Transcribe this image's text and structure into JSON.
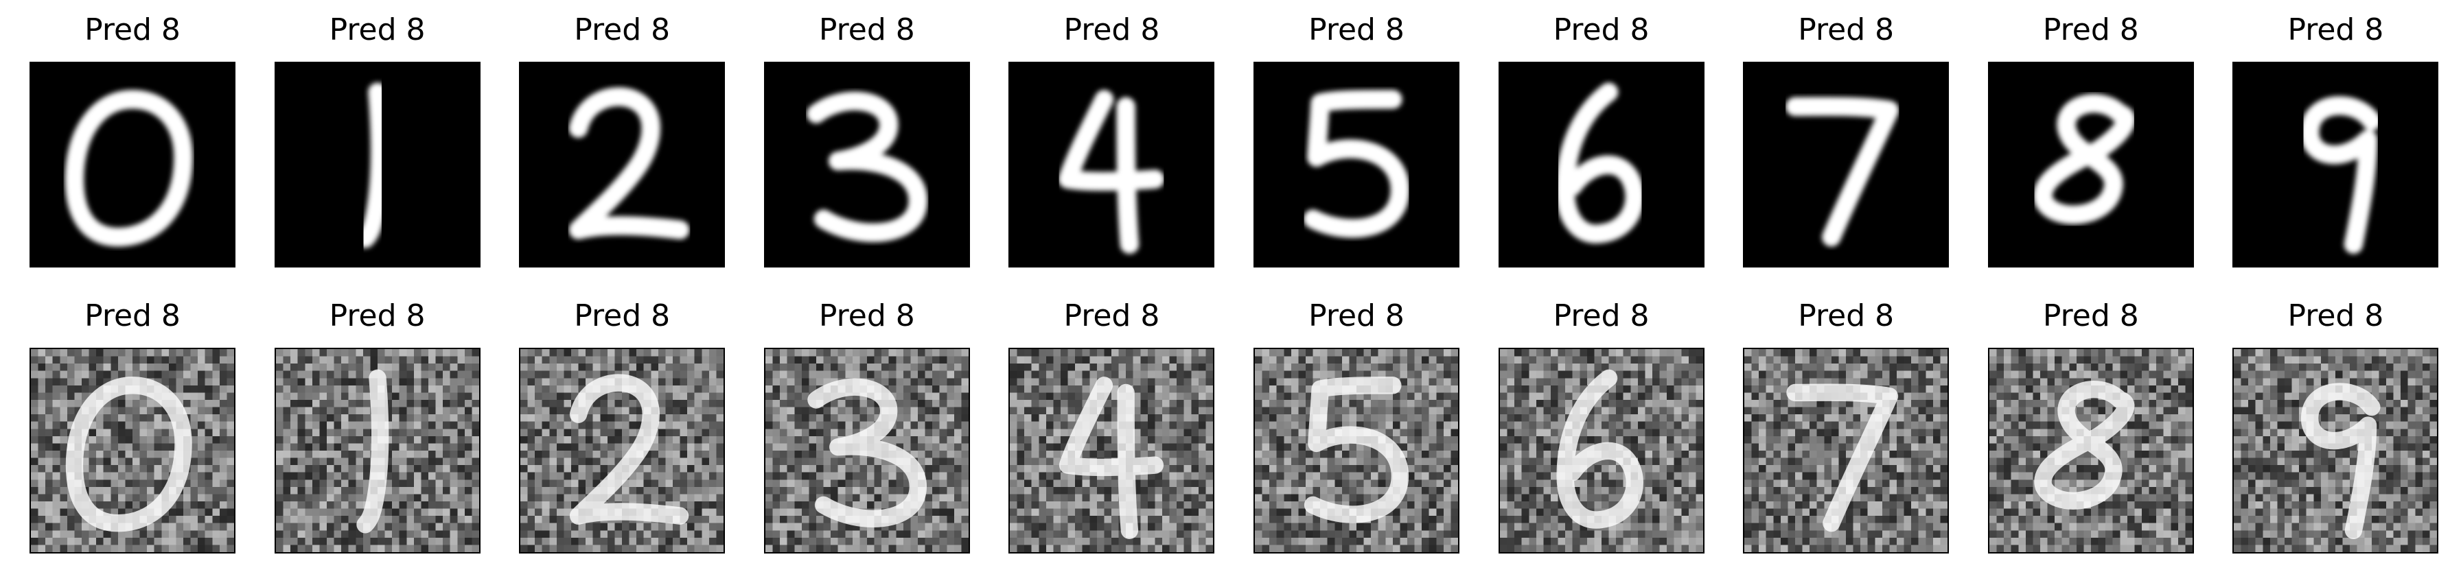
{
  "figure": {
    "rows": [
      {
        "variant": "clean",
        "panels": [
          {
            "title": "Pred 8",
            "digit": "0"
          },
          {
            "title": "Pred 8",
            "digit": "1"
          },
          {
            "title": "Pred 8",
            "digit": "2"
          },
          {
            "title": "Pred 8",
            "digit": "3"
          },
          {
            "title": "Pred 8",
            "digit": "4"
          },
          {
            "title": "Pred 8",
            "digit": "5"
          },
          {
            "title": "Pred 8",
            "digit": "6"
          },
          {
            "title": "Pred 8",
            "digit": "7"
          },
          {
            "title": "Pred 8",
            "digit": "8"
          },
          {
            "title": "Pred 8",
            "digit": "9"
          }
        ]
      },
      {
        "variant": "noisy",
        "panels": [
          {
            "title": "Pred 8",
            "digit": "0"
          },
          {
            "title": "Pred 8",
            "digit": "1"
          },
          {
            "title": "Pred 8",
            "digit": "2"
          },
          {
            "title": "Pred 8",
            "digit": "3"
          },
          {
            "title": "Pred 8",
            "digit": "4"
          },
          {
            "title": "Pred 8",
            "digit": "5"
          },
          {
            "title": "Pred 8",
            "digit": "6"
          },
          {
            "title": "Pred 8",
            "digit": "7"
          },
          {
            "title": "Pred 8",
            "digit": "8"
          },
          {
            "title": "Pred 8",
            "digit": "9"
          }
        ]
      }
    ],
    "colors": {
      "clean_background": "#000000",
      "stroke": "#ffffff",
      "noisy_background": "#6b6b6b",
      "frame": "#000000"
    }
  }
}
